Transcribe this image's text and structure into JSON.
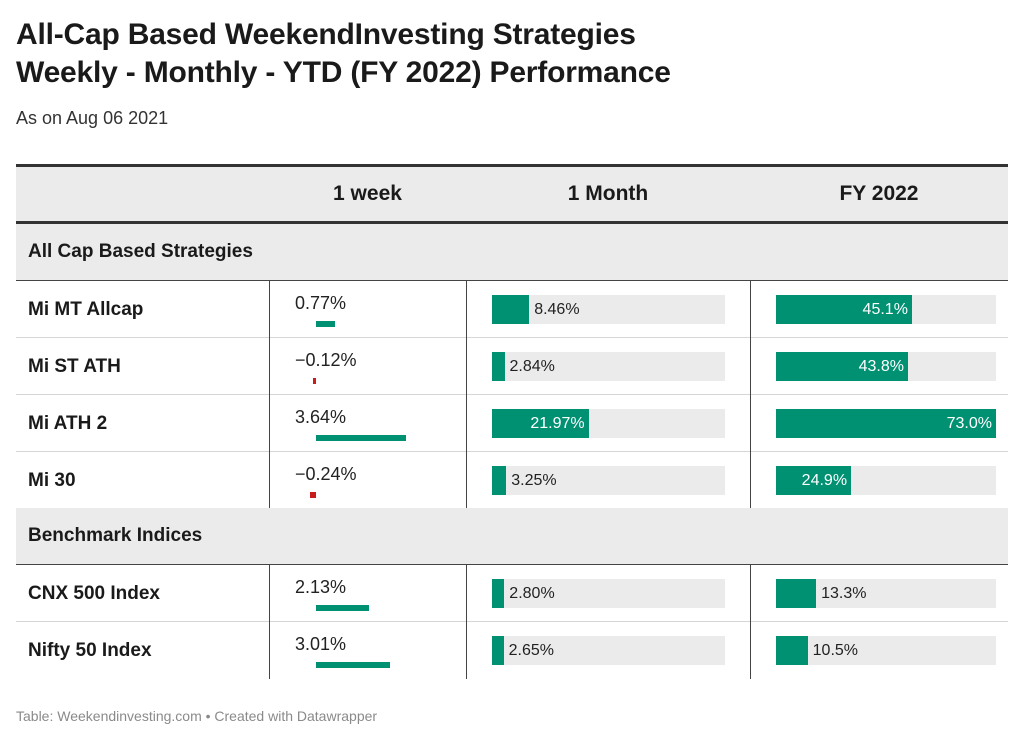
{
  "title_line1": "All-Cap Based WeekendInvesting Strategies",
  "title_line2": "Weekly - Monthly - YTD (FY 2022)  Performance",
  "subtitle": "As on Aug 06 2021",
  "footer": "Table: Weekendinvesting.com • Created with Datawrapper",
  "colors": {
    "positive": "#009173",
    "negative": "#c71e1d",
    "bar_background": "#ebebeb"
  },
  "chart_data": {
    "type": "table",
    "columns": [
      "",
      "1 week",
      "1 Month",
      "FY 2022"
    ],
    "groups": [
      {
        "name": "All Cap Based Strategies",
        "rows": [
          {
            "name": "Mi MT Allcap",
            "week": 0.77,
            "week_label": "0.77%",
            "month": 8.46,
            "month_label": "8.46%",
            "fy": 45.1,
            "fy_label": "45.1%"
          },
          {
            "name": "Mi ST ATH",
            "week": -0.12,
            "week_label": "−0.12%",
            "month": 2.84,
            "month_label": "2.84%",
            "fy": 43.8,
            "fy_label": "43.8%"
          },
          {
            "name": "Mi ATH 2",
            "week": 3.64,
            "week_label": "3.64%",
            "month": 21.97,
            "month_label": "21.97%",
            "fy": 73.0,
            "fy_label": "73.0%"
          },
          {
            "name": "Mi 30",
            "week": -0.24,
            "week_label": "−0.24%",
            "month": 3.25,
            "month_label": "3.25%",
            "fy": 24.9,
            "fy_label": "24.9%"
          }
        ]
      },
      {
        "name": "Benchmark Indices",
        "rows": [
          {
            "name": "CNX 500 Index",
            "week": 2.13,
            "week_label": "2.13%",
            "month": 2.8,
            "month_label": "2.80%",
            "fy": 13.3,
            "fy_label": "13.3%"
          },
          {
            "name": "Nifty 50 Index",
            "week": 3.01,
            "week_label": "3.01%",
            "month": 2.65,
            "month_label": "2.65%",
            "fy": 10.5,
            "fy_label": "10.5%"
          }
        ]
      }
    ]
  }
}
